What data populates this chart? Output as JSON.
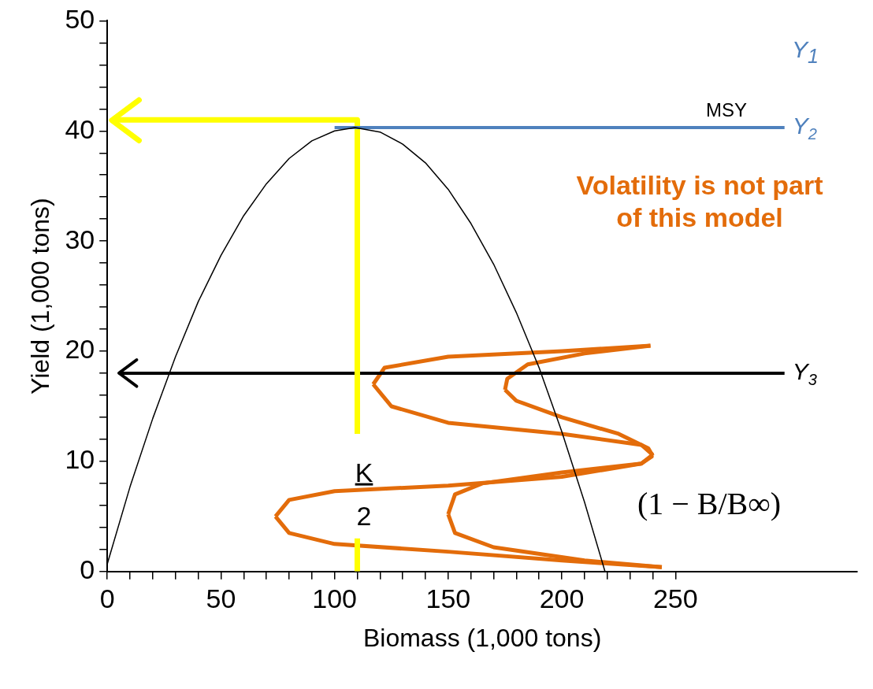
{
  "chart_data": {
    "type": "line",
    "xlabel": "Biomass (1,000 tons)",
    "ylabel": "Yield (1,000 tons)",
    "xlim": [
      0,
      330
    ],
    "ylim": [
      0,
      50
    ],
    "xticks": [
      0,
      {
        "value": 10,
        "label": null
      },
      {
        "value": 20,
        "label": null
      },
      {
        "value": 30,
        "label": null
      },
      {
        "value": 40,
        "label": null
      },
      50,
      {
        "value": 60,
        "label": null
      },
      {
        "value": 70,
        "label": null
      },
      {
        "value": 80,
        "label": null
      },
      {
        "value": 90,
        "label": null
      },
      100,
      {
        "value": 110,
        "label": null
      },
      {
        "value": 120,
        "label": null
      },
      {
        "value": 130,
        "label": null
      },
      {
        "value": 140,
        "label": null
      },
      150,
      {
        "value": 160,
        "label": null
      },
      {
        "value": 170,
        "label": null
      },
      {
        "value": 180,
        "label": null
      },
      {
        "value": 190,
        "label": null
      },
      200,
      {
        "value": 210,
        "label": null
      },
      {
        "value": 220,
        "label": null
      },
      {
        "value": 230,
        "label": null
      },
      {
        "value": 240,
        "label": null
      },
      250
    ],
    "yticks": [
      0,
      {
        "value": 2,
        "label": null
      },
      {
        "value": 4,
        "label": null
      },
      {
        "value": 6,
        "label": null
      },
      {
        "value": 8,
        "label": null
      },
      10,
      {
        "value": 12,
        "label": null
      },
      {
        "value": 14,
        "label": null
      },
      {
        "value": 16,
        "label": null
      },
      {
        "value": 18,
        "label": null
      },
      20,
      {
        "value": 22,
        "label": null
      },
      {
        "value": 24,
        "label": null
      },
      {
        "value": 26,
        "label": null
      },
      {
        "value": 28,
        "label": null
      },
      30,
      {
        "value": 32,
        "label": null
      },
      {
        "value": 34,
        "label": null
      },
      {
        "value": 36,
        "label": null
      },
      {
        "value": 38,
        "label": null
      },
      40,
      {
        "value": 42,
        "label": null
      },
      {
        "value": 44,
        "label": null
      },
      {
        "value": 46,
        "label": null
      },
      {
        "value": 48,
        "label": null
      },
      50
    ],
    "grid": false,
    "legend": false,
    "marker": "none",
    "line_style": "solid",
    "series": [
      {
        "color": "#000000",
        "x": [
          0,
          10,
          20,
          30,
          40,
          50,
          60,
          70,
          80,
          90,
          100,
          109,
          120,
          130,
          140,
          150,
          160,
          170,
          180,
          190,
          200,
          210,
          219
        ],
        "values": [
          0.7,
          7.7,
          13.9,
          19.5,
          24.5,
          28.7,
          32.3,
          35.2,
          37.5,
          39.1,
          40,
          40.3,
          39.9,
          38.8,
          37.1,
          34.7,
          31.6,
          27.9,
          23.5,
          18.5,
          12.7,
          6.3,
          0
        ]
      },
      {
        "name": "Y$_{2}$",
        "color": "#4f81bd",
        "x": [
          100,
          298
        ],
        "values": [
          40.3,
          40.3
        ]
      },
      {
        "color": "#ffff00",
        "x": [
          110,
          110
        ],
        "values": [
          0,
          3
        ]
      },
      {
        "color": "#ffff00",
        "x": [
          110,
          110,
          2
        ],
        "values": [
          12.5,
          41,
          41
        ]
      },
      {
        "name": "Y$_{3}$",
        "color": "#000000",
        "x": [
          298,
          5
        ],
        "values": [
          18,
          18
        ]
      },
      {
        "color": "#e36c0a",
        "x": [
          239,
          210,
          185,
          176,
          175
        ],
        "values": [
          20.5,
          19.8,
          18.8,
          17.5,
          16.5
        ]
      },
      {
        "color": "#e36c0a",
        "x": [
          175,
          180,
          200,
          225,
          238,
          240
        ],
        "values": [
          16.5,
          15.5,
          14,
          12.5,
          11.2,
          10.5
        ]
      },
      {
        "color": "#e36c0a",
        "x": [
          240,
          235,
          200,
          165,
          153,
          150
        ],
        "values": [
          10.5,
          9.8,
          9,
          8,
          7,
          5.2
        ]
      },
      {
        "color": "#e36c0a",
        "x": [
          150,
          153,
          170,
          210,
          244
        ],
        "values": [
          5.2,
          3.5,
          2.2,
          1,
          0.4
        ]
      },
      {
        "color": "#e36c0a",
        "x": [
          244,
          200,
          150,
          100,
          80,
          74
        ],
        "values": [
          0.4,
          1,
          1.8,
          2.5,
          3.5,
          5
        ]
      },
      {
        "color": "#e36c0a",
        "x": [
          74,
          80,
          100,
          150,
          200,
          235,
          240
        ],
        "values": [
          5,
          6.5,
          7.3,
          7.8,
          8.6,
          9.8,
          10.6
        ]
      },
      {
        "color": "#e36c0a",
        "x": [
          240,
          235,
          200,
          150,
          125,
          117
        ],
        "values": [
          10.6,
          11.5,
          12.5,
          13.5,
          15,
          17
        ]
      },
      {
        "color": "#e36c0a",
        "x": [
          117,
          122,
          150,
          200,
          239
        ],
        "values": [
          17,
          18.5,
          19.5,
          20,
          20.5
        ]
      }
    ],
    "annotations": [
      "MSY",
      "Y$_{1}$",
      "Volatility is not part of this model",
      "(1 − B/B∞)",
      "K",
      "2"
    ]
  }
}
